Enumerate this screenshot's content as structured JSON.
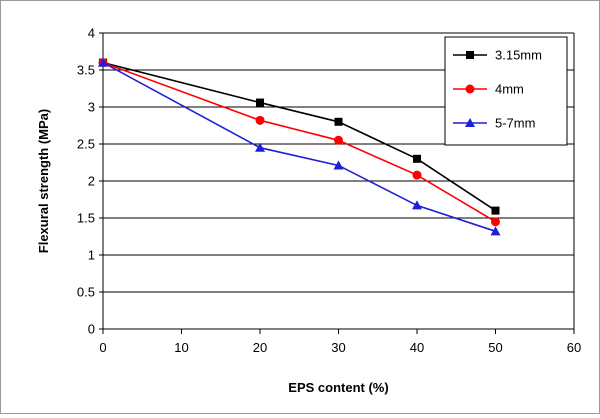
{
  "chart_data": {
    "type": "line",
    "xlabel": "EPS content (%)",
    "ylabel": "Flexural strength (MPa)",
    "xlim": [
      0,
      60
    ],
    "ylim": [
      0,
      4
    ],
    "xticks": [
      0,
      10,
      20,
      30,
      40,
      50,
      60
    ],
    "yticks": [
      0,
      0.5,
      1,
      1.5,
      2,
      2.5,
      3,
      3.5,
      4
    ],
    "ytick_labels": [
      "0",
      "0.5",
      "1",
      "1.5",
      "2",
      "2.5",
      "3",
      "3.5",
      "4"
    ],
    "grid": "horizontal",
    "legend": "top-right",
    "series": [
      {
        "name": "3.15mm",
        "color": "#000000",
        "marker": "square",
        "x": [
          0,
          20,
          30,
          40,
          50
        ],
        "y": [
          3.6,
          3.06,
          2.8,
          2.3,
          1.6
        ]
      },
      {
        "name": "4mm",
        "color": "#ff0000",
        "marker": "circle",
        "x": [
          0,
          20,
          30,
          40,
          50
        ],
        "y": [
          3.6,
          2.82,
          2.55,
          2.08,
          1.45
        ]
      },
      {
        "name": "5-7mm",
        "color": "#1f1fd6",
        "marker": "triangle",
        "x": [
          0,
          20,
          30,
          40,
          50
        ],
        "y": [
          3.6,
          2.45,
          2.21,
          1.67,
          1.32
        ]
      }
    ]
  }
}
